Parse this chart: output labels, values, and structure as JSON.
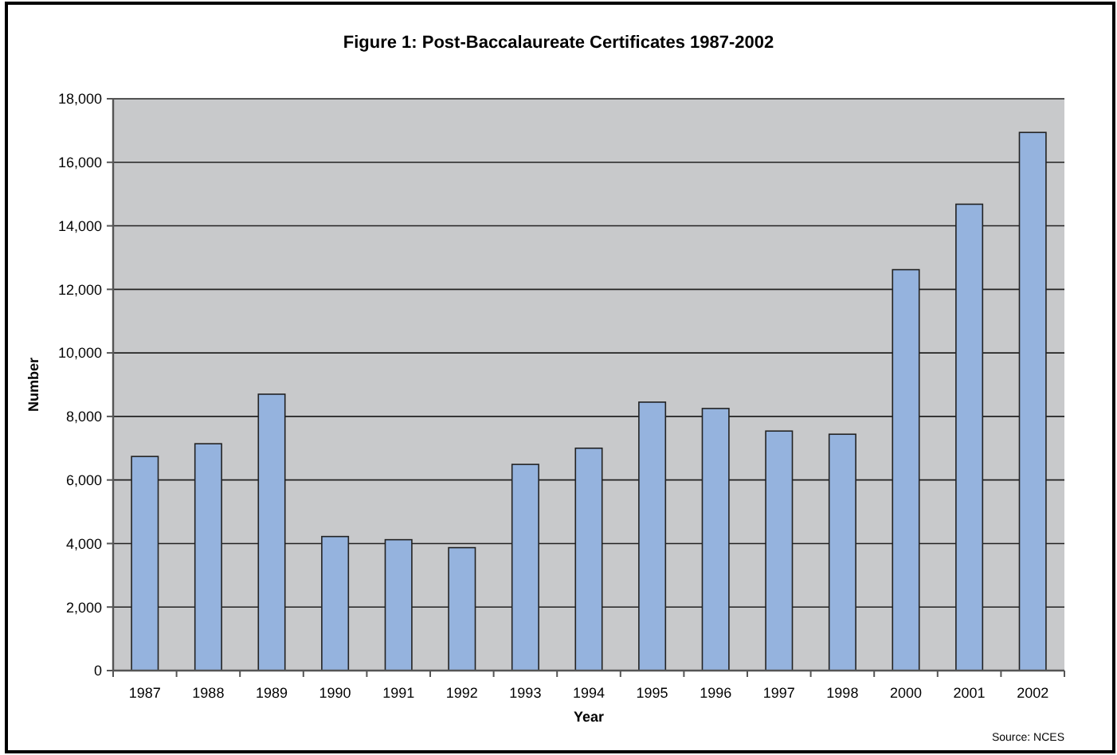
{
  "chart_data": {
    "type": "bar",
    "title": "Figure 1: Post-Baccalaureate Certificates 1987-2002",
    "xlabel": "Year",
    "ylabel": "Number",
    "categories": [
      "1987",
      "1988",
      "1989",
      "1990",
      "1991",
      "1992",
      "1993",
      "1994",
      "1995",
      "1996",
      "1997",
      "1998",
      "2000",
      "2001",
      "2002"
    ],
    "values": [
      6740,
      7140,
      8700,
      4220,
      4120,
      3870,
      6490,
      7000,
      8450,
      8250,
      7540,
      7440,
      12620,
      14680,
      16940
    ],
    "color": "#95b3de",
    "ylim": [
      0,
      18000
    ],
    "yticks": [
      {
        "value": 0,
        "label": "0"
      },
      {
        "value": 2000,
        "label": "2,000"
      },
      {
        "value": 4000,
        "label": "4,000"
      },
      {
        "value": 6000,
        "label": "6,000"
      },
      {
        "value": 8000,
        "label": "8,000"
      },
      {
        "value": 10000,
        "label": "10,000"
      },
      {
        "value": 12000,
        "label": "12,000"
      },
      {
        "value": 14000,
        "label": "14,000"
      },
      {
        "value": 16000,
        "label": "16,000"
      },
      {
        "value": 18000,
        "label": "18,000"
      }
    ],
    "grid": "y",
    "annotations": [
      "Source: NCES"
    ]
  }
}
